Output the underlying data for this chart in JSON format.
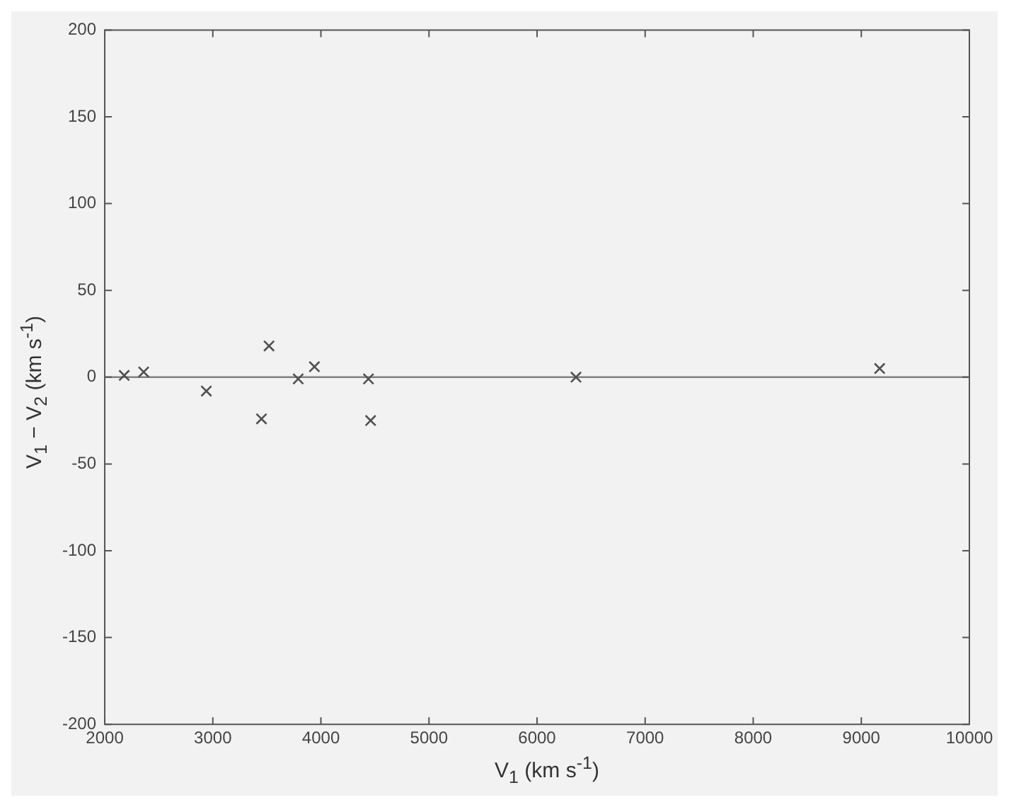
{
  "chart_data": {
    "type": "scatter",
    "xlabel": "V$_{1}$ (km s$^{-1}$)",
    "ylabel": "V$_{1}$ − V$_{2}$ (km s$^{-1}$)",
    "x": [
      2180,
      2360,
      2940,
      3520,
      3450,
      3790,
      3940,
      4440,
      4460,
      6360,
      9170
    ],
    "series": [
      {
        "color": "#505050",
        "values": [
          1,
          3,
          -8,
          18,
          -24,
          -1,
          6,
          -1,
          -25,
          0,
          5
        ]
      }
    ],
    "marker": "cross",
    "xlim": [
      2000,
      10000
    ],
    "xticks": [
      2000,
      3000,
      4000,
      5000,
      6000,
      7000,
      8000,
      9000,
      10000
    ],
    "ylim": [
      -200,
      200
    ],
    "yticks": [
      -200,
      -150,
      -100,
      -50,
      0,
      50,
      100,
      150,
      200
    ],
    "ref_lines": [
      {
        "axis": "y",
        "value": 0,
        "color": "#808080"
      }
    ],
    "grid": false,
    "legend": false
  }
}
